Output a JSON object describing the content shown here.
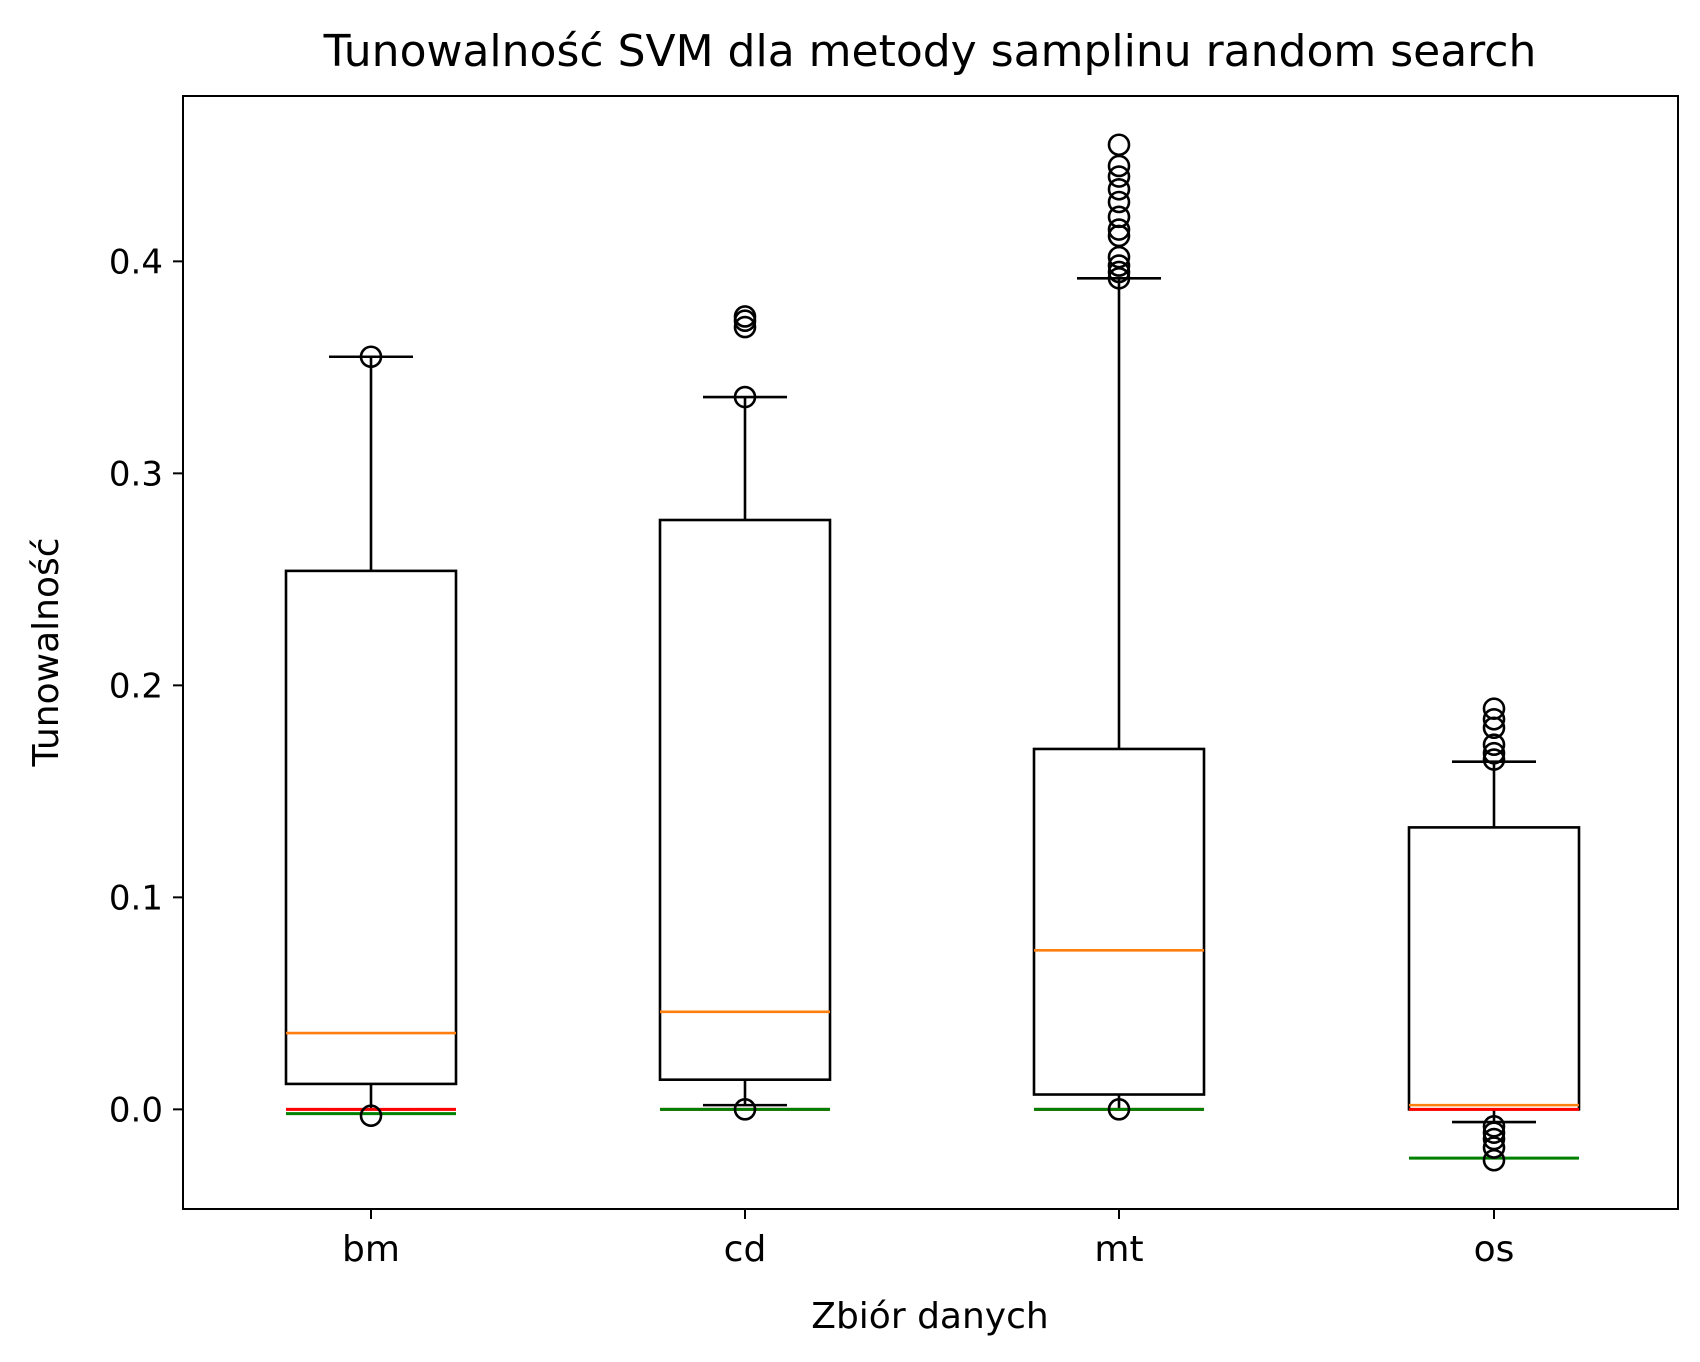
{
  "chart_data": {
    "type": "boxplot",
    "title": "Tunowalność SVM dla metody samplinu random search",
    "xlabel": "Zbiór danych",
    "ylabel": "Tunowalność",
    "ylim": [
      -0.047,
      0.478
    ],
    "yticks": [
      0.0,
      0.1,
      0.2,
      0.3,
      0.4
    ],
    "ytick_labels": [
      "0.0",
      "0.1",
      "0.2",
      "0.3",
      "0.4"
    ],
    "categories": [
      "bm",
      "cd",
      "mt",
      "os"
    ],
    "grid": false,
    "legend": "none",
    "colors": {
      "box": "#000000",
      "median": "#ff7f0e",
      "red_line": "#ff0000",
      "green_line": "#008000"
    },
    "boxes": [
      {
        "category": "bm",
        "whisker_low": 0.0,
        "q1": 0.012,
        "median": 0.036,
        "q3": 0.254,
        "whisker_high": 0.355,
        "outliers": [
          -0.003,
          0.355
        ],
        "red": 0.0,
        "green": -0.002
      },
      {
        "category": "cd",
        "whisker_low": 0.002,
        "q1": 0.014,
        "median": 0.046,
        "q3": 0.278,
        "whisker_high": 0.336,
        "outliers": [
          0.0,
          0.336,
          0.369,
          0.372,
          0.374
        ],
        "red": 0.0,
        "green": 0.0
      },
      {
        "category": "mt",
        "whisker_low": 0.0,
        "q1": 0.007,
        "median": 0.075,
        "q3": 0.17,
        "whisker_high": 0.392,
        "outliers": [
          0.0,
          0.392,
          0.395,
          0.398,
          0.402,
          0.412,
          0.415,
          0.421,
          0.428,
          0.434,
          0.44,
          0.445,
          0.455
        ],
        "red": 0.0,
        "green": 0.0
      },
      {
        "category": "os",
        "whisker_low": -0.006,
        "q1": 0.0,
        "median": 0.002,
        "q3": 0.133,
        "whisker_high": 0.164,
        "outliers": [
          -0.008,
          -0.011,
          -0.014,
          -0.018,
          -0.024,
          0.165,
          0.168,
          0.172,
          0.18,
          0.184,
          0.189
        ],
        "red": 0.0,
        "green": -0.023
      }
    ]
  }
}
